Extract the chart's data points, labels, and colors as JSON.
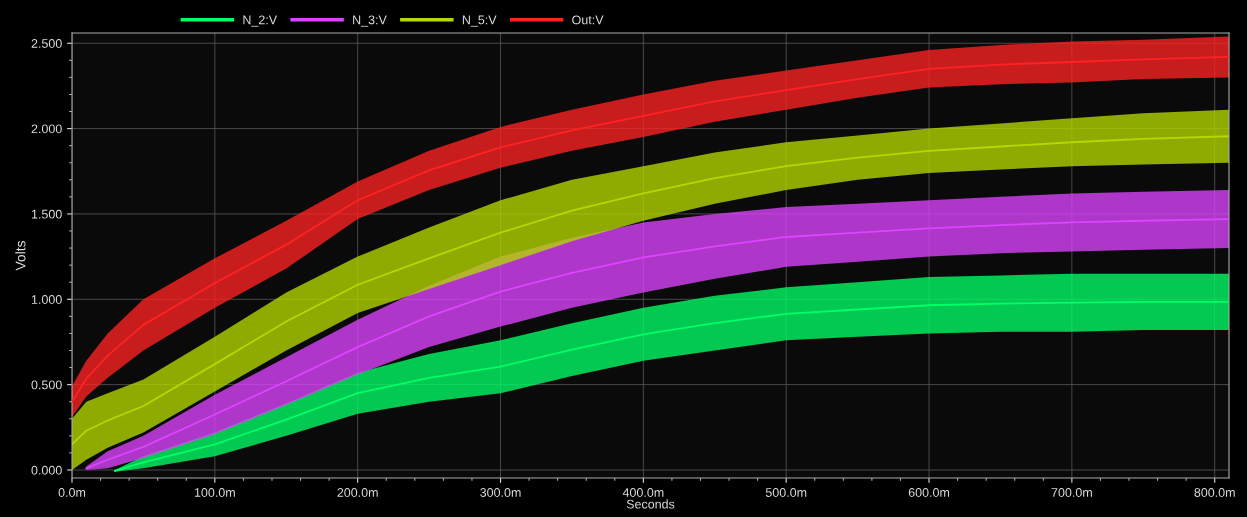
{
  "chart_data": {
    "type": "line",
    "xlabel": "Seconds",
    "ylabel": "Volts",
    "xlim": [
      0,
      810
    ],
    "ylim": [
      -0.047,
      2.56
    ],
    "xticks": [
      {
        "value": 0,
        "label": "0.0m"
      },
      {
        "value": 100,
        "label": "100.0m"
      },
      {
        "value": 200,
        "label": "200.0m"
      },
      {
        "value": 300,
        "label": "300.0m"
      },
      {
        "value": 400,
        "label": "400.0m"
      },
      {
        "value": 500,
        "label": "500.0m"
      },
      {
        "value": 600,
        "label": "600.0m"
      },
      {
        "value": 700,
        "label": "700.0m"
      },
      {
        "value": 800,
        "label": "800.0m"
      }
    ],
    "yticks": [
      {
        "value": 0,
        "label": "0.000"
      },
      {
        "value": 0.5,
        "label": "0.500"
      },
      {
        "value": 1,
        "label": "1.000"
      },
      {
        "value": 1.5,
        "label": "1.500"
      },
      {
        "value": 2,
        "label": "2.000"
      },
      {
        "value": 2.5,
        "label": "2.500"
      }
    ],
    "grid": true,
    "legend": "top",
    "marker": "none",
    "line_style": "solid",
    "series": [
      {
        "name": "N_2:V",
        "color": "#00ff66",
        "x": [
          30,
          50,
          100,
          150,
          200,
          250,
          300,
          350,
          400,
          450,
          500,
          550,
          600,
          650,
          700,
          750,
          810
        ],
        "values": [
          -0.005,
          0.045,
          0.15,
          0.295,
          0.45,
          0.54,
          0.605,
          0.705,
          0.795,
          0.86,
          0.915,
          0.94,
          0.965,
          0.975,
          0.98,
          0.985,
          0.985
        ],
        "lower": [
          -0.01,
          0.01,
          0.08,
          0.2,
          0.33,
          0.4,
          0.45,
          0.55,
          0.64,
          0.7,
          0.76,
          0.78,
          0.8,
          0.81,
          0.81,
          0.82,
          0.82
        ],
        "upper": [
          0.0,
          0.08,
          0.22,
          0.39,
          0.57,
          0.68,
          0.76,
          0.86,
          0.95,
          1.02,
          1.07,
          1.1,
          1.13,
          1.14,
          1.15,
          1.15,
          1.15
        ]
      },
      {
        "name": "N_3:V",
        "color": "#dd44ff",
        "x": [
          10,
          25,
          50,
          100,
          150,
          200,
          250,
          300,
          350,
          400,
          450,
          500,
          550,
          600,
          650,
          700,
          750,
          810
        ],
        "values": [
          0.01,
          0.06,
          0.135,
          0.325,
          0.52,
          0.72,
          0.9,
          1.045,
          1.155,
          1.245,
          1.31,
          1.365,
          1.39,
          1.415,
          1.435,
          1.45,
          1.46,
          1.47
        ],
        "lower": [
          0.0,
          0.01,
          0.07,
          0.21,
          0.38,
          0.56,
          0.72,
          0.84,
          0.95,
          1.04,
          1.12,
          1.19,
          1.22,
          1.25,
          1.27,
          1.28,
          1.29,
          1.3
        ],
        "upper": [
          0.02,
          0.11,
          0.2,
          0.44,
          0.66,
          0.88,
          1.08,
          1.25,
          1.36,
          1.45,
          1.5,
          1.54,
          1.56,
          1.58,
          1.6,
          1.62,
          1.63,
          1.64
        ]
      },
      {
        "name": "N_5:V",
        "color": "#b5d900",
        "x": [
          0,
          10,
          25,
          50,
          100,
          150,
          200,
          250,
          300,
          350,
          400,
          450,
          500,
          550,
          600,
          650,
          700,
          750,
          810
        ],
        "values": [
          0.15,
          0.23,
          0.29,
          0.375,
          0.62,
          0.87,
          1.085,
          1.24,
          1.39,
          1.52,
          1.62,
          1.71,
          1.78,
          1.83,
          1.87,
          1.895,
          1.92,
          1.94,
          1.955
        ],
        "lower": [
          0.0,
          0.06,
          0.13,
          0.22,
          0.46,
          0.7,
          0.92,
          1.06,
          1.2,
          1.34,
          1.46,
          1.56,
          1.64,
          1.7,
          1.74,
          1.76,
          1.78,
          1.79,
          1.8
        ],
        "upper": [
          0.3,
          0.4,
          0.45,
          0.53,
          0.78,
          1.04,
          1.25,
          1.42,
          1.58,
          1.7,
          1.78,
          1.86,
          1.92,
          1.96,
          2.0,
          2.03,
          2.06,
          2.09,
          2.11
        ]
      },
      {
        "name": "Out:V",
        "color": "#ff2222",
        "x": [
          0,
          10,
          25,
          50,
          100,
          150,
          200,
          250,
          300,
          350,
          400,
          450,
          500,
          550,
          600,
          650,
          700,
          750,
          810
        ],
        "values": [
          0.4,
          0.535,
          0.67,
          0.85,
          1.095,
          1.32,
          1.58,
          1.755,
          1.89,
          1.99,
          2.075,
          2.16,
          2.225,
          2.29,
          2.35,
          2.375,
          2.39,
          2.405,
          2.42
        ],
        "lower": [
          0.31,
          0.43,
          0.54,
          0.7,
          0.95,
          1.18,
          1.47,
          1.64,
          1.77,
          1.87,
          1.95,
          2.04,
          2.11,
          2.18,
          2.24,
          2.26,
          2.27,
          2.29,
          2.3
        ],
        "upper": [
          0.49,
          0.64,
          0.8,
          1.0,
          1.24,
          1.46,
          1.69,
          1.87,
          2.01,
          2.11,
          2.2,
          2.28,
          2.34,
          2.4,
          2.46,
          2.49,
          2.51,
          2.52,
          2.54
        ]
      }
    ]
  }
}
